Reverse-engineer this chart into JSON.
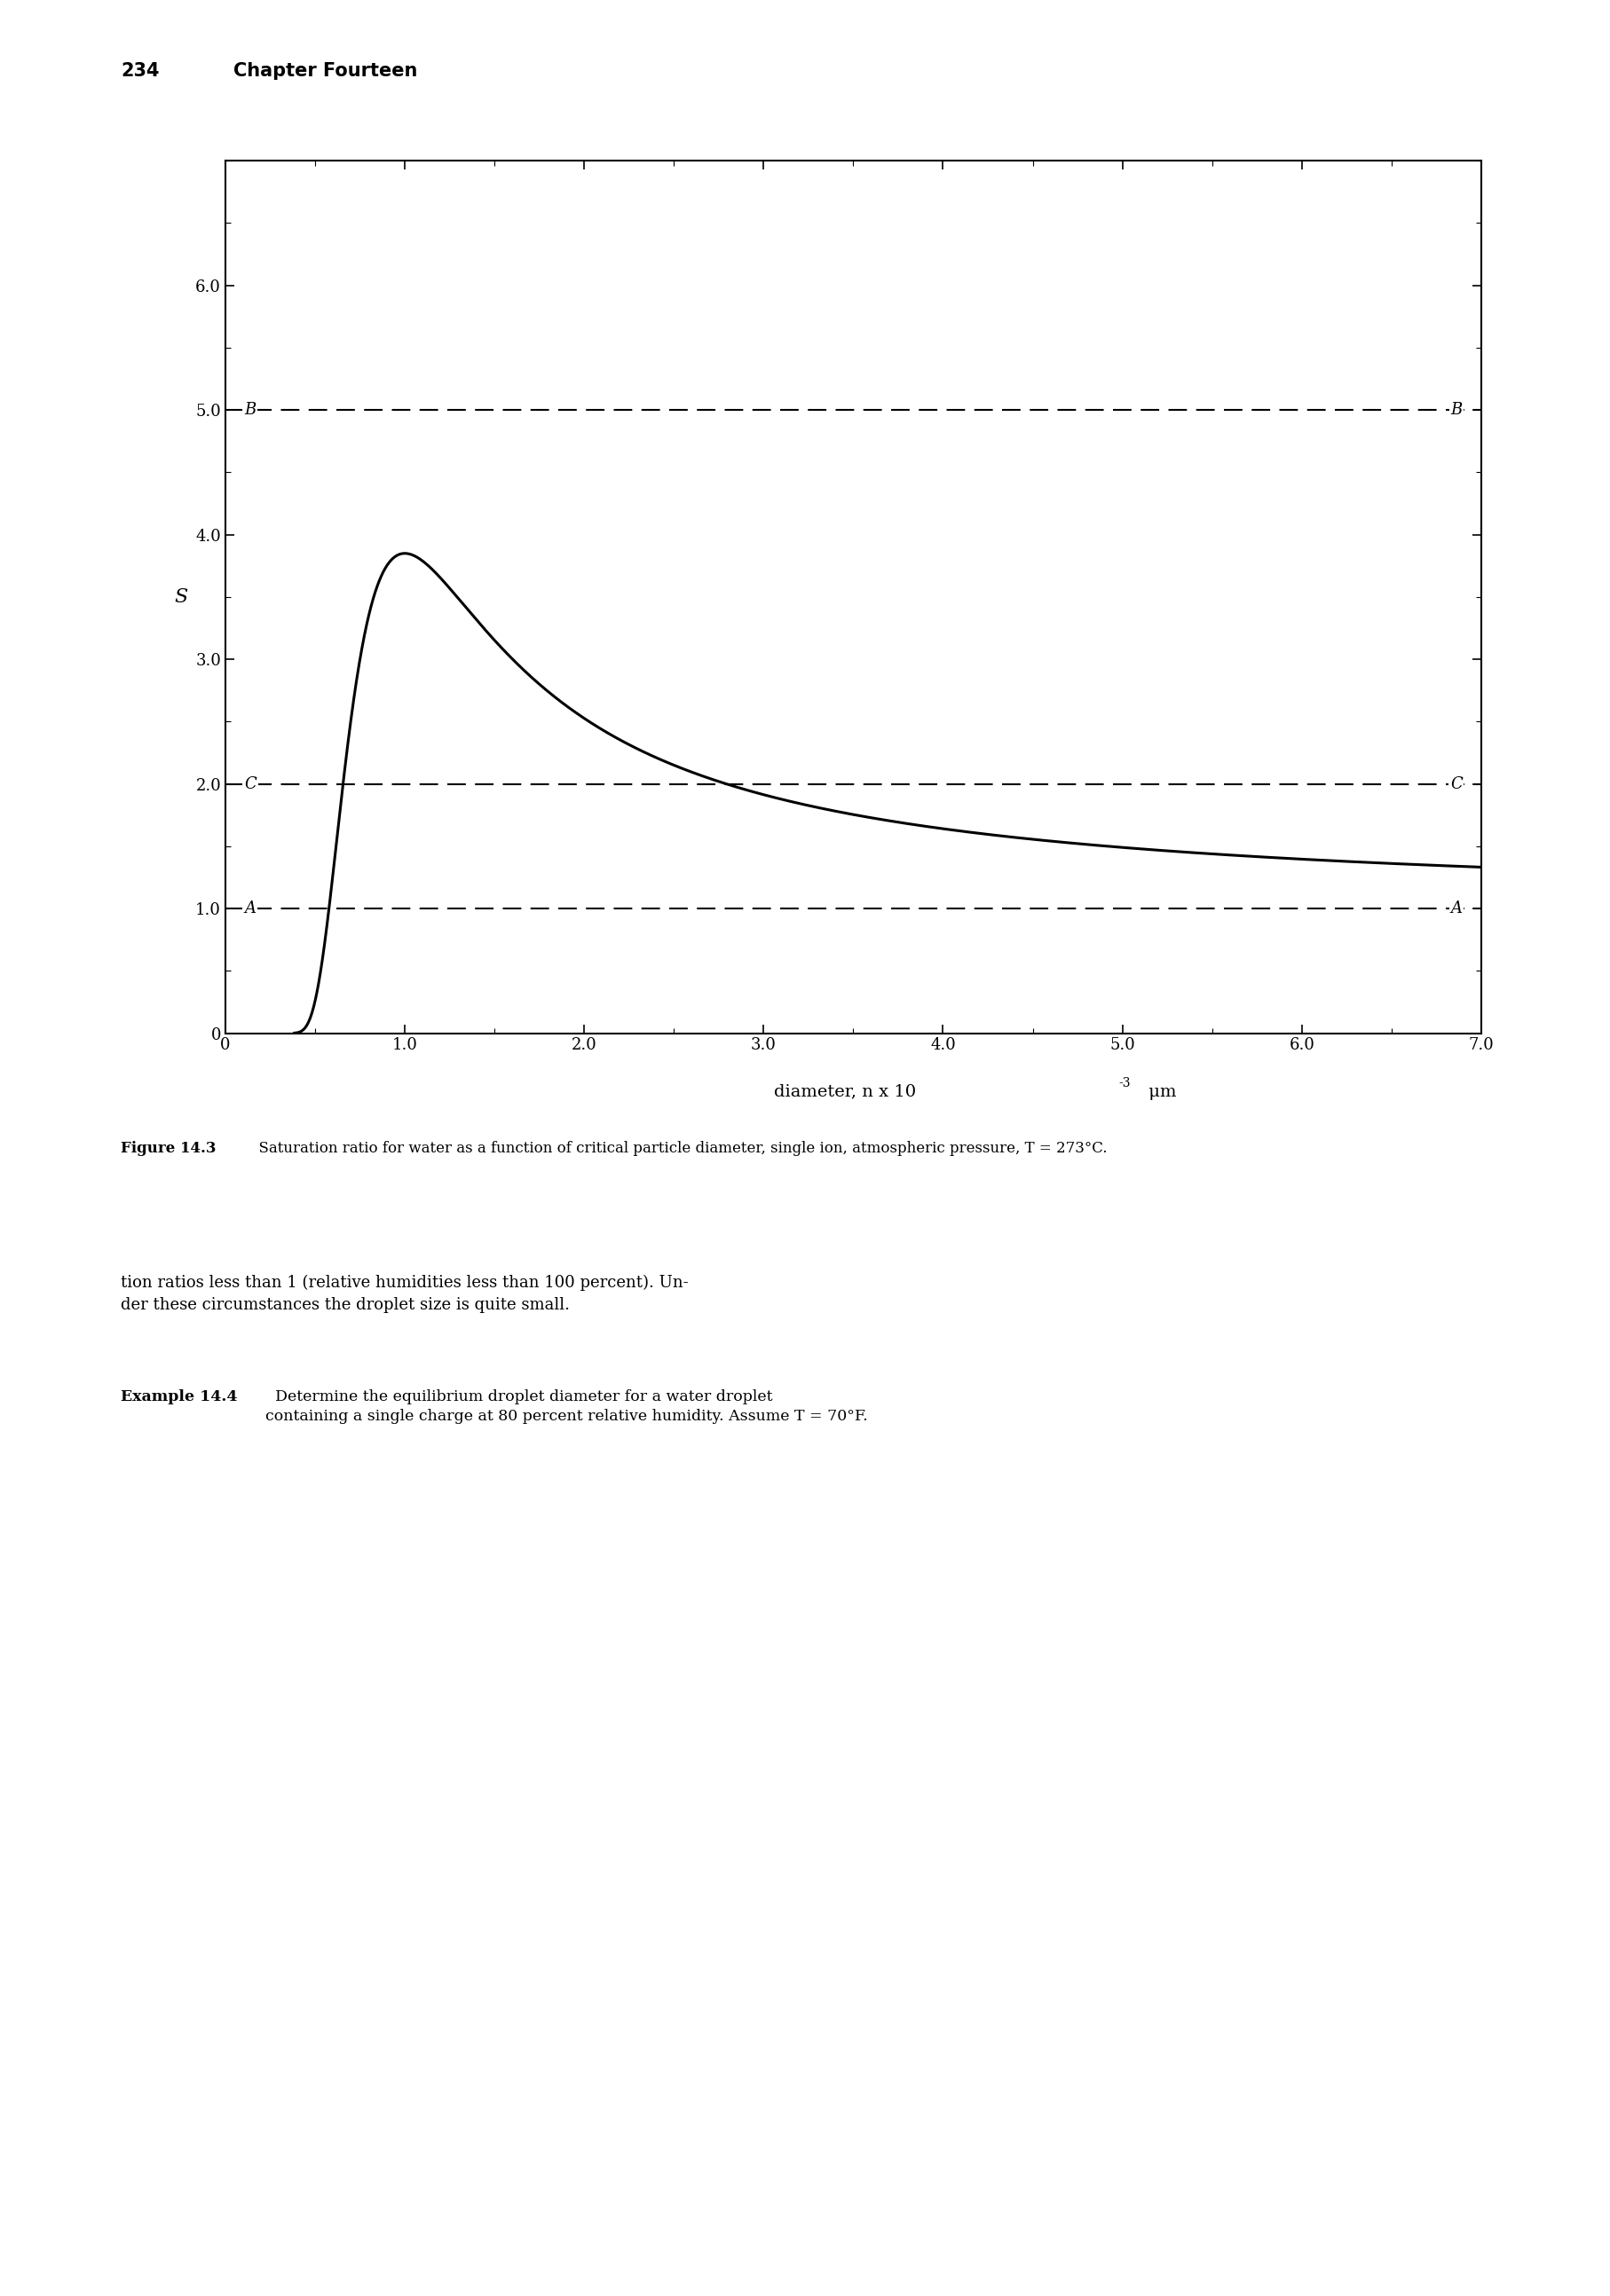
{
  "header_num": "234",
  "header_title": "Chapter Fourteen",
  "xlabel_main": "diameter, n x 10",
  "xlabel_exp": "-3",
  "xlabel_unit": " μm",
  "ylabel": "S",
  "xlim": [
    0,
    7.0
  ],
  "ylim": [
    0,
    7.0
  ],
  "xticks": [
    0,
    1.0,
    2.0,
    3.0,
    4.0,
    5.0,
    6.0,
    7.0
  ],
  "yticks": [
    0,
    1.0,
    2.0,
    3.0,
    4.0,
    5.0,
    6.0
  ],
  "xtick_labels": [
    "0",
    "1.0",
    "2.0",
    "3.0",
    "4.0",
    "5.0",
    "6.0",
    "7.0"
  ],
  "ytick_labels": [
    "0",
    "1.0",
    "2.0",
    "3.0",
    "4.0",
    "5.0",
    "6.0"
  ],
  "line_A_y": 1.0,
  "line_B_y": 5.0,
  "line_C_y": 2.0,
  "curve_A": 1.2,
  "curve_B": 0.14,
  "figure_caption_bold": "Figure 14.3",
  "figure_caption_text": "  Saturation ratio for water as a function of critical particle diameter, single ion, atmospheric pressure, T = 273°C.",
  "body_text_1": "tion ratios less than 1 (relative humidities less than 100 percent). Un-\nder these circumstances the droplet size is quite small.",
  "example_label": "Example 14.4",
  "example_text": "  Determine the equilibrium droplet diameter for a water droplet\ncontaining a single charge at 80 percent relative humidity. Assume T = 70°F.",
  "curve_color": "#000000",
  "dashed_color": "#000000",
  "background_color": "#ffffff"
}
